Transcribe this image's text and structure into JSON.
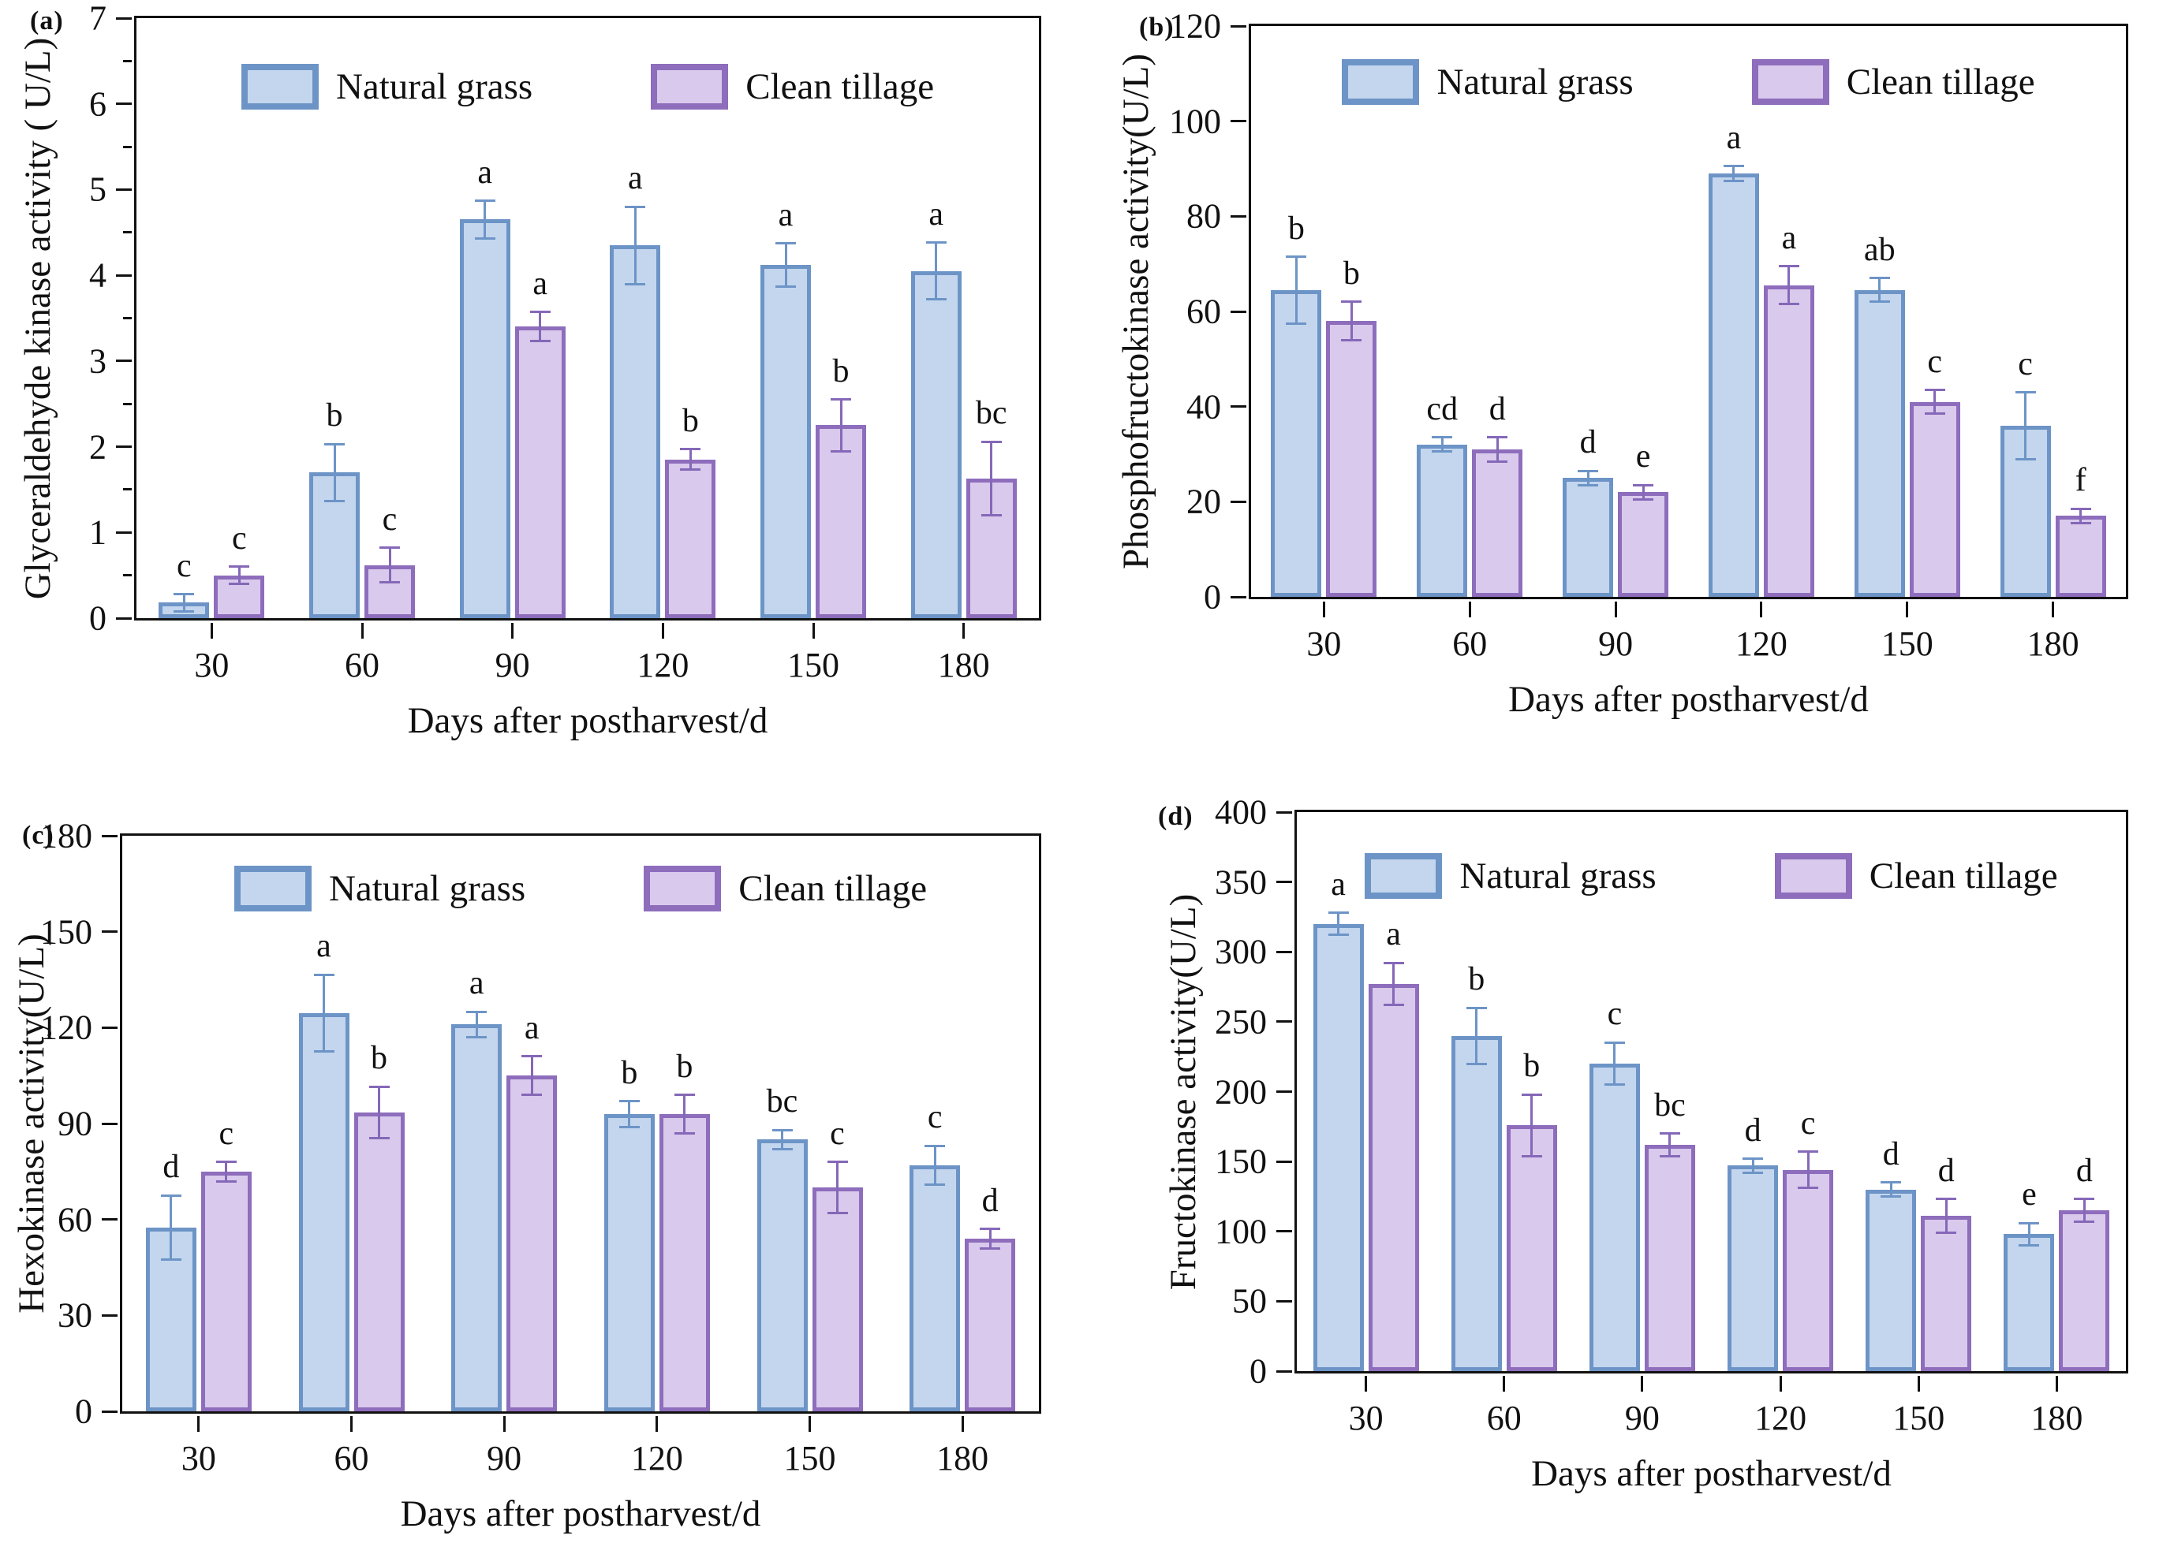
{
  "figure_title": "",
  "legend": {
    "natural_grass_label": "Natural grass",
    "clean_tillage_label": "Clean tillage"
  },
  "colors": {
    "natural_grass_fill": "#c3d6ee",
    "natural_grass_border": "#6d94c6",
    "natural_grass_error": "#6d94c6",
    "clean_tillage_fill": "#d9c9ec",
    "clean_tillage_border": "#8e6dbc",
    "clean_tillage_error": "#8568b8",
    "axis": "#111111"
  },
  "chart_data": [
    {
      "panel": "(a)",
      "type": "bar",
      "title": "",
      "ylabel": "Glyceraldehyde kinase activity ( U/L)",
      "xlabel": "Days after postharvest/d",
      "ylim": [
        0,
        7
      ],
      "yticks": [
        0,
        1,
        2,
        3,
        4,
        5,
        6,
        7
      ],
      "minor_tick_step": 0.5,
      "grid": false,
      "legend_position": "top-center-inside",
      "categories": [
        "30",
        "60",
        "90",
        "120",
        "150",
        "180"
      ],
      "series": [
        {
          "name": "Natural grass",
          "values": [
            0.18,
            1.7,
            4.65,
            4.35,
            4.12,
            4.05
          ],
          "errors": [
            0.1,
            0.33,
            0.22,
            0.45,
            0.25,
            0.33
          ],
          "letters": [
            "c",
            "b",
            "a",
            "a",
            "a",
            "a"
          ]
        },
        {
          "name": "Clean tillage",
          "values": [
            0.5,
            0.62,
            3.4,
            1.85,
            2.25,
            1.63
          ],
          "errors": [
            0.1,
            0.2,
            0.17,
            0.12,
            0.3,
            0.43
          ],
          "letters": [
            "c",
            "c",
            "a",
            "b",
            "b",
            "bc"
          ]
        }
      ]
    },
    {
      "panel": "(b)",
      "type": "bar",
      "title": "",
      "ylabel": "Phosphofructokinase activity(U/L)",
      "xlabel": "Days after postharvest/d",
      "ylim": [
        0,
        120
      ],
      "yticks": [
        0,
        20,
        40,
        60,
        80,
        100,
        120
      ],
      "minor_tick_step": null,
      "grid": false,
      "legend_position": "top-center-inside",
      "categories": [
        "30",
        "60",
        "90",
        "120",
        "150",
        "180"
      ],
      "series": [
        {
          "name": "Natural grass",
          "values": [
            64.5,
            32,
            25,
            89,
            64.5,
            36
          ],
          "errors": [
            7,
            1.5,
            1.5,
            1.5,
            2.5,
            7
          ],
          "letters": [
            "b",
            "cd",
            "d",
            "a",
            "ab",
            "c"
          ]
        },
        {
          "name": "Clean tillage",
          "values": [
            58,
            31,
            22,
            65.5,
            41,
            17
          ],
          "errors": [
            4,
            2.5,
            1.5,
            4,
            2.5,
            1.5
          ],
          "letters": [
            "b",
            "d",
            "e",
            "a",
            "c",
            "f"
          ]
        }
      ]
    },
    {
      "panel": "(c)",
      "type": "bar",
      "title": "",
      "ylabel": "Hexokinase activity(U/L)",
      "xlabel": "Days after postharvest/d",
      "ylim": [
        0,
        180
      ],
      "yticks": [
        0,
        30,
        60,
        90,
        120,
        150,
        180
      ],
      "minor_tick_step": null,
      "grid": false,
      "legend_position": "top-center-inside",
      "categories": [
        "30",
        "60",
        "90",
        "120",
        "150",
        "180"
      ],
      "series": [
        {
          "name": "Natural grass",
          "values": [
            57.5,
            124.5,
            121,
            93,
            85,
            77
          ],
          "errors": [
            10,
            12,
            4,
            4,
            3,
            6
          ],
          "letters": [
            "d",
            "a",
            "a",
            "b",
            "bc",
            "c"
          ]
        },
        {
          "name": "Clean tillage",
          "values": [
            75,
            93.5,
            105,
            93,
            70,
            54
          ],
          "errors": [
            3,
            8,
            6,
            6,
            8,
            3
          ],
          "letters": [
            "c",
            "b",
            "a",
            "b",
            "c",
            "d"
          ]
        }
      ]
    },
    {
      "panel": "(d)",
      "type": "bar",
      "title": "",
      "ylabel": "Fructokinase activity(U/L)",
      "xlabel": "Days after postharvest/d",
      "ylim": [
        0,
        400
      ],
      "yticks": [
        0,
        50,
        100,
        150,
        200,
        250,
        300,
        350,
        400
      ],
      "minor_tick_step": null,
      "grid": false,
      "legend_position": "top-center-inside",
      "categories": [
        "30",
        "60",
        "90",
        "120",
        "150",
        "180"
      ],
      "series": [
        {
          "name": "Natural grass",
          "values": [
            320,
            240,
            220,
            147,
            130,
            98
          ],
          "errors": [
            8,
            20,
            15,
            5,
            5,
            8
          ],
          "letters": [
            "a",
            "b",
            "c",
            "d",
            "d",
            "e"
          ]
        },
        {
          "name": "Clean tillage",
          "values": [
            277,
            176,
            162,
            144,
            111,
            115
          ],
          "errors": [
            15,
            22,
            8,
            13,
            12,
            8
          ],
          "letters": [
            "a",
            "b",
            "bc",
            "c",
            "d",
            "d"
          ]
        }
      ]
    }
  ]
}
